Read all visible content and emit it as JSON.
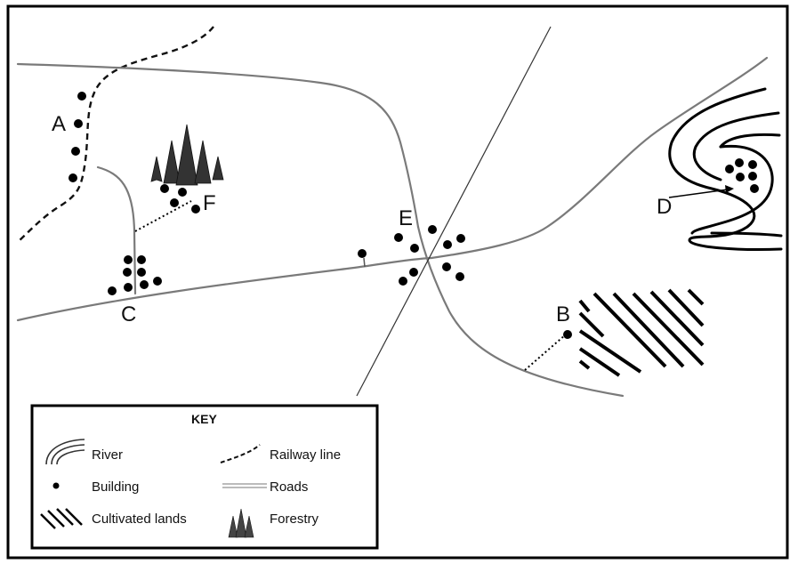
{
  "map": {
    "site_labels": {
      "a": "A",
      "b": "B",
      "c": "C",
      "d": "D",
      "e": "E",
      "f": "F"
    }
  },
  "key": {
    "title": "KEY",
    "items": {
      "river": {
        "label": "River",
        "icon": "river-icon"
      },
      "railway": {
        "label": "Railway line",
        "icon": "railway-line-icon"
      },
      "building": {
        "label": "Building",
        "icon": "building-icon"
      },
      "roads": {
        "label": "Roads",
        "icon": "roads-icon"
      },
      "cultivated": {
        "label": "Cultivated lands",
        "icon": "cultivated-lands-icon"
      },
      "forestry": {
        "label": "Forestry",
        "icon": "forestry-icon"
      }
    }
  },
  "colors": {
    "ink": "#000000",
    "road": "#7a7a7a",
    "background": "#ffffff"
  }
}
